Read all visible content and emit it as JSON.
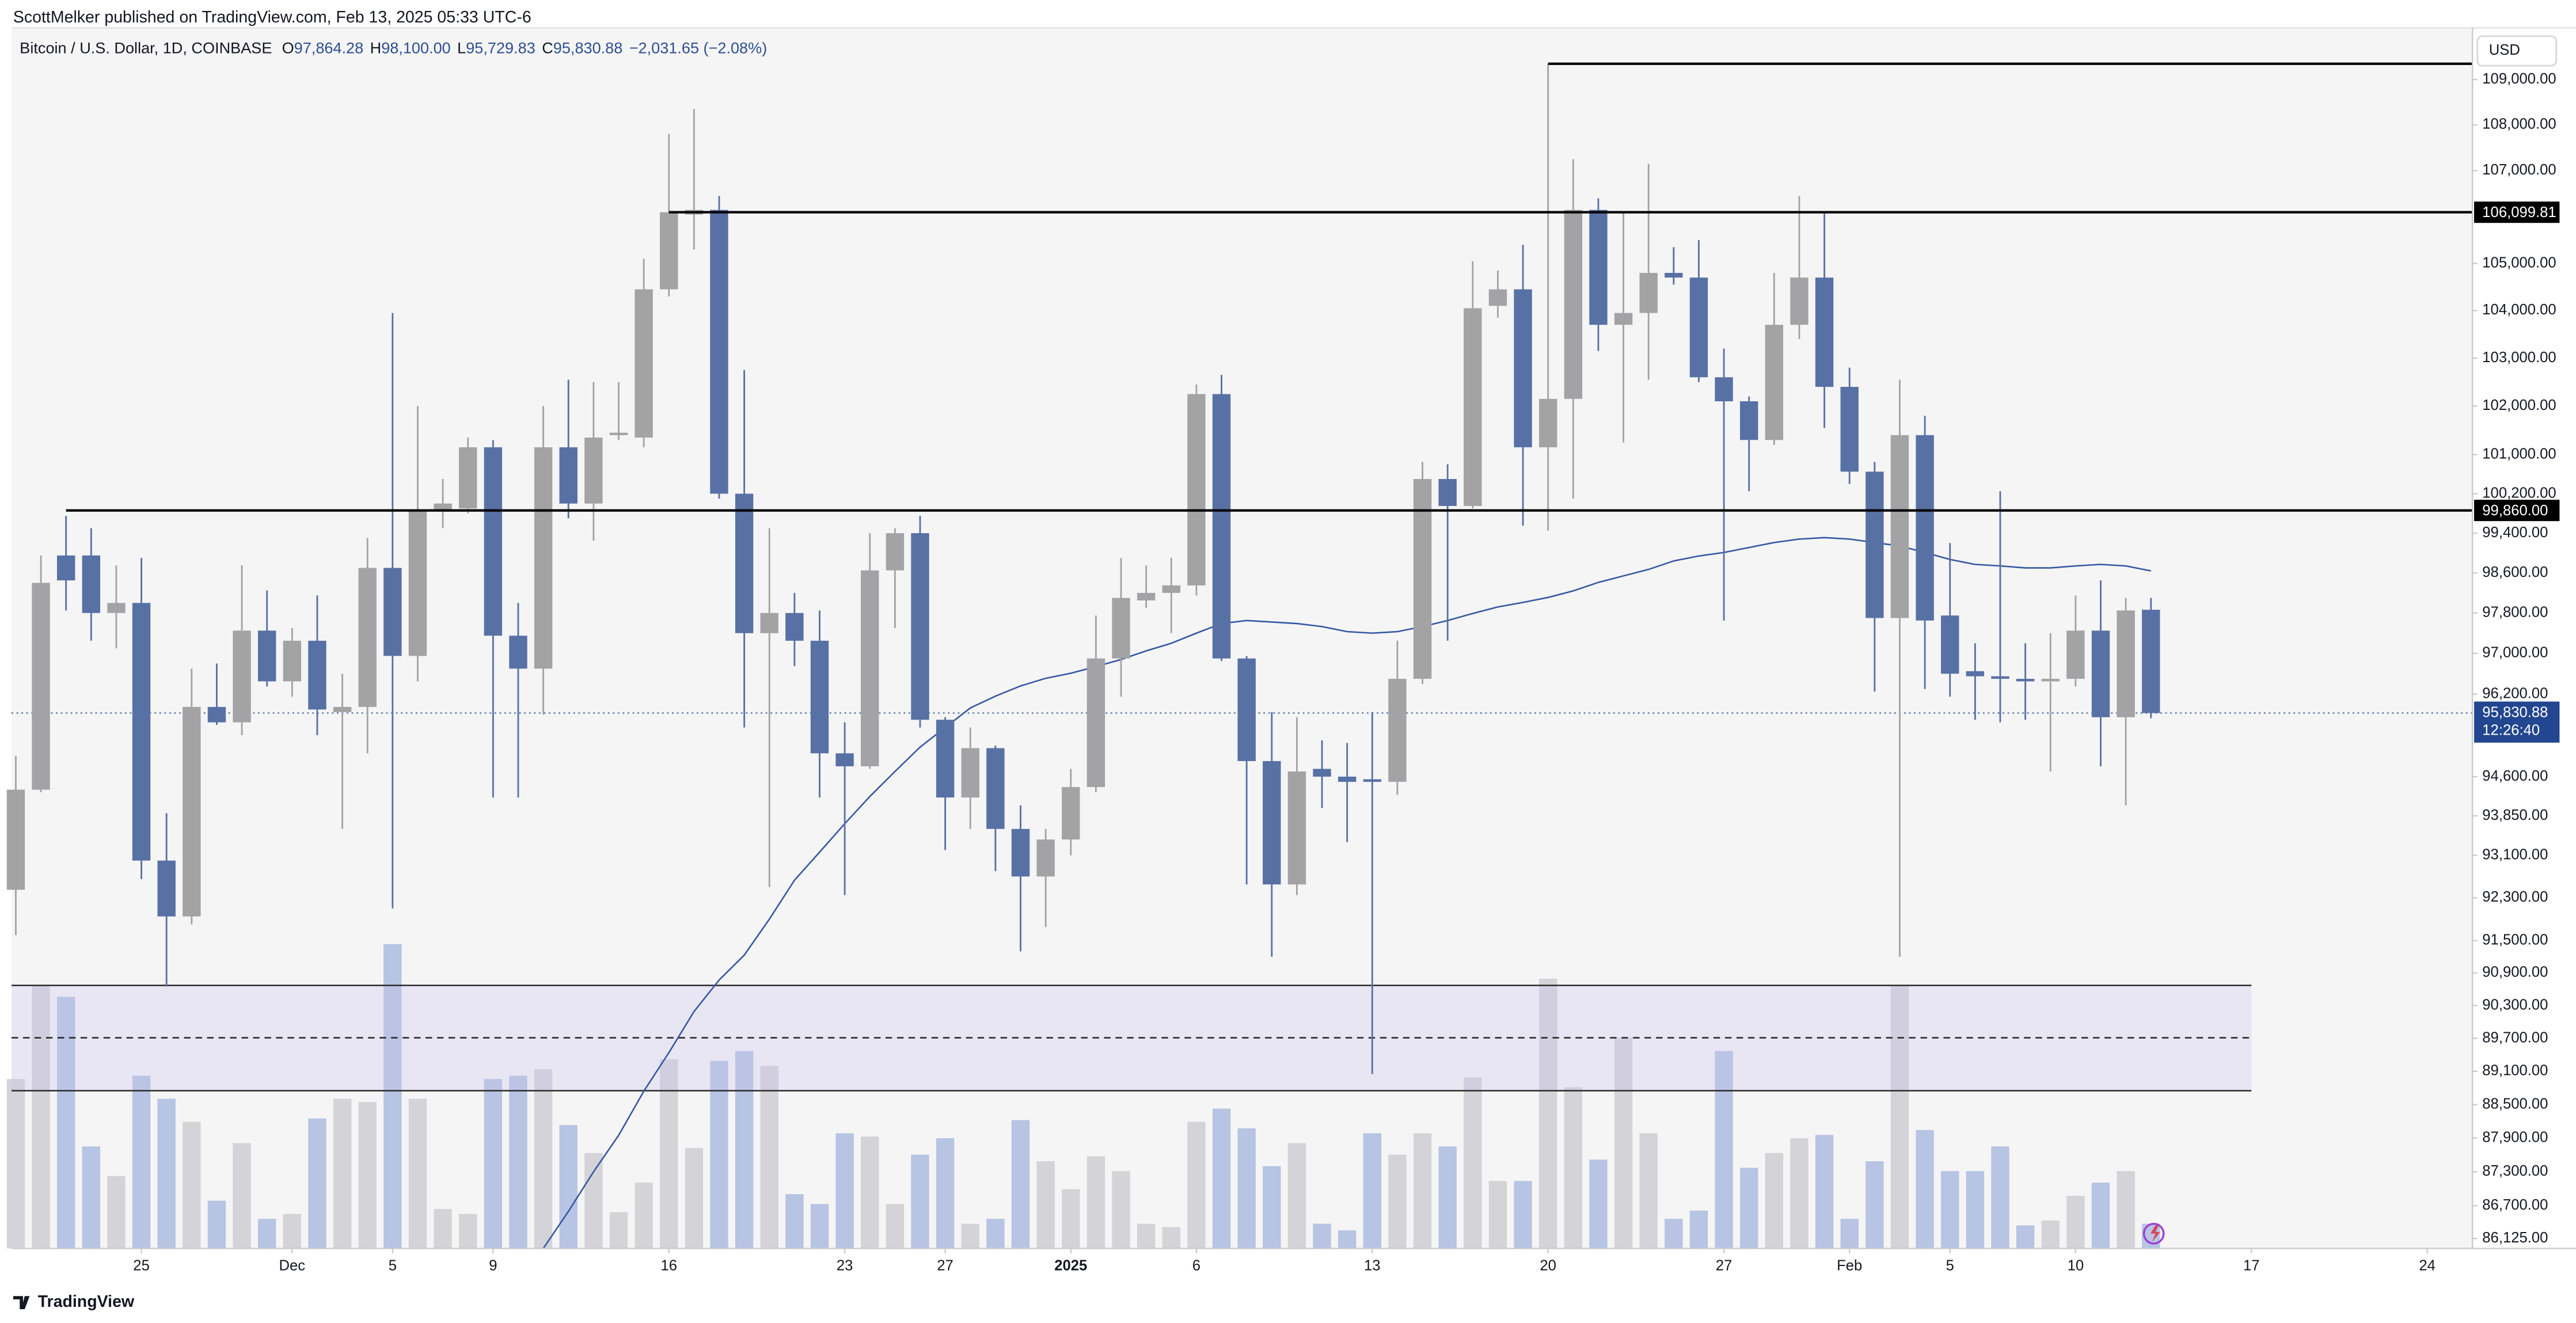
{
  "header": {
    "text": "ScottMelker published on TradingView.com, Feb 13, 2025 05:33 UTC-6"
  },
  "footer": {
    "brand": "TradingView"
  },
  "chart_data": {
    "type": "candlestick",
    "legend": {
      "symbol": "Bitcoin / U.S. Dollar, 1D, COINBASE",
      "items": [
        {
          "key": "O",
          "value": "97,864.28"
        },
        {
          "key": "H",
          "value": "98,100.00"
        },
        {
          "key": "L",
          "value": "95,729.83"
        },
        {
          "key": "C",
          "value": "95,830.88"
        }
      ],
      "change": "−2,031.65 (−2.08%)"
    },
    "currency": "USD",
    "log_scale": true,
    "grid": false,
    "up_color": "#a3a3a6",
    "down_color": "#5871a5",
    "volume_up_color": "#d4d4d8",
    "volume_down_color": "#b7c4e3",
    "ma_color": "#3556a3",
    "open": [
      92450,
      94350,
      98950,
      98950,
      97800,
      98000,
      93000,
      91950,
      95950,
      95650,
      97450,
      96450,
      97250,
      95850,
      95950,
      98700,
      96950,
      99850,
      99900,
      101150,
      97350,
      96700,
      101150,
      100000,
      101400,
      101350,
      104450,
      106050,
      106150,
      100200,
      97400,
      97800,
      97250,
      95050,
      94800,
      98650,
      99400,
      95700,
      94200,
      95150,
      93600,
      92700,
      93400,
      94400,
      96900,
      98050,
      98200,
      98350,
      102250,
      96900,
      94900,
      92550,
      94750,
      94600,
      94550,
      94500,
      96500,
      100500,
      99950,
      104100,
      104450,
      101150,
      102150,
      106150,
      103700,
      103950,
      104800,
      104700,
      102600,
      102100,
      101300,
      103700,
      104700,
      102400,
      100650,
      97700,
      101400,
      97750,
      96650,
      96550,
      96500,
      96450,
      96500,
      97450,
      95750,
      97864.28
    ],
    "high": [
      95000,
      98950,
      99750,
      99500,
      98750,
      98900,
      93900,
      96700,
      96800,
      98750,
      98250,
      97500,
      98150,
      96600,
      99300,
      103950,
      102000,
      100500,
      101350,
      101300,
      98000,
      102000,
      102550,
      102500,
      102500,
      105100,
      107800,
      108350,
      106450,
      102750,
      99500,
      98200,
      97850,
      95650,
      99400,
      99500,
      99750,
      95750,
      95550,
      95200,
      94050,
      93600,
      94750,
      97750,
      98900,
      98750,
      98900,
      102450,
      102650,
      96950,
      95850,
      95750,
      95300,
      95250,
      95850,
      97250,
      100850,
      100800,
      105050,
      104850,
      105400,
      109350,
      107250,
      106400,
      106100,
      107150,
      105350,
      105500,
      103200,
      102200,
      104800,
      106450,
      106100,
      102800,
      100850,
      102550,
      101800,
      99200,
      97200,
      100250,
      97200,
      97400,
      98150,
      98450,
      98100,
      98100
    ],
    "low": [
      91600,
      94300,
      97850,
      97250,
      97100,
      92650,
      90650,
      91800,
      95600,
      95400,
      96350,
      96150,
      95400,
      93600,
      95050,
      92100,
      96450,
      99500,
      99800,
      94200,
      94200,
      95800,
      99700,
      99250,
      101300,
      101150,
      104300,
      105300,
      100100,
      95550,
      92500,
      96750,
      94200,
      92350,
      94750,
      97500,
      95550,
      93200,
      93600,
      92800,
      91300,
      91750,
      93100,
      94300,
      96150,
      97900,
      97400,
      98150,
      96850,
      92550,
      91200,
      92350,
      94000,
      93350,
      89050,
      94250,
      96400,
      97250,
      99900,
      103850,
      99550,
      99450,
      100100,
      103150,
      101250,
      102550,
      104550,
      102500,
      97650,
      100250,
      101200,
      103400,
      101550,
      100400,
      96250,
      91200,
      96300,
      96150,
      95700,
      95650,
      95700,
      94700,
      96350,
      94800,
      94050,
      95729.83
    ],
    "close": [
      94350,
      98400,
      98450,
      97800,
      98000,
      93000,
      91950,
      95950,
      95650,
      97450,
      96450,
      97250,
      95900,
      95950,
      98700,
      96950,
      99850,
      100000,
      101150,
      97350,
      96700,
      101150,
      100000,
      101350,
      101450,
      104450,
      106100,
      106150,
      100200,
      97400,
      97800,
      97250,
      95050,
      94800,
      98650,
      99400,
      95700,
      94200,
      95150,
      93600,
      92700,
      93400,
      94400,
      96900,
      98100,
      98200,
      98350,
      102250,
      96900,
      94900,
      92550,
      94700,
      94600,
      94500,
      94500,
      96500,
      100500,
      99950,
      104050,
      104450,
      101150,
      102150,
      106150,
      103700,
      103950,
      104800,
      104700,
      102600,
      102100,
      101300,
      103700,
      104700,
      102400,
      100650,
      97700,
      101400,
      97650,
      96600,
      96550,
      96500,
      96450,
      96500,
      97450,
      95750,
      97850,
      95830.88
    ],
    "volume": [
      103,
      160,
      153,
      62,
      44,
      105,
      91,
      77,
      29,
      64,
      18,
      21,
      79,
      91,
      89,
      185,
      91,
      24,
      21,
      103,
      105,
      109,
      75,
      58,
      22,
      40,
      115,
      61,
      114,
      120,
      111,
      33,
      27,
      70,
      68,
      27,
      57,
      67,
      15,
      18,
      78,
      53,
      36,
      56,
      47,
      15,
      13,
      77,
      85,
      73,
      50,
      64,
      15,
      11,
      70,
      57,
      70,
      62,
      104,
      41,
      41,
      164,
      98,
      54,
      128,
      70,
      18,
      23,
      120,
      49,
      58,
      67,
      69,
      18,
      53,
      160,
      72,
      47,
      47,
      62,
      14,
      17,
      32,
      40,
      47,
      15
    ],
    "volume_lim": [
      0,
      742
    ],
    "ma": [
      null,
      null,
      null,
      null,
      null,
      null,
      null,
      null,
      null,
      null,
      null,
      null,
      null,
      null,
      null,
      null,
      null,
      null,
      null,
      null,
      null,
      85950,
      86600,
      87300,
      87950,
      88740,
      89440,
      90190,
      90770,
      91230,
      91900,
      92630,
      93160,
      93700,
      94220,
      94700,
      95170,
      95550,
      95930,
      96160,
      96360,
      96510,
      96610,
      96740,
      96880,
      97050,
      97200,
      97400,
      97590,
      97650,
      97620,
      97590,
      97530,
      97430,
      97400,
      97430,
      97530,
      97650,
      97790,
      97920,
      98010,
      98110,
      98240,
      98410,
      98540,
      98670,
      98840,
      98940,
      99010,
      99110,
      99210,
      99280,
      99310,
      99280,
      99210,
      99140,
      99010,
      98870,
      98770,
      98740,
      98700,
      98700,
      98740,
      98770,
      98740,
      98640
    ],
    "xlim": [
      -0.17,
      97.8
    ],
    "xticks": [
      {
        "value": 5,
        "label": "25"
      },
      {
        "value": 11,
        "label": "Dec"
      },
      {
        "value": 15,
        "label": "5"
      },
      {
        "value": 19,
        "label": "9"
      },
      {
        "value": 26,
        "label": "16"
      },
      {
        "value": 33,
        "label": "23"
      },
      {
        "value": 37,
        "label": "27"
      },
      {
        "value": 42,
        "label": "2025",
        "bold": true
      },
      {
        "value": 47,
        "label": "6"
      },
      {
        "value": 54,
        "label": "13"
      },
      {
        "value": 61,
        "label": "20"
      },
      {
        "value": 68,
        "label": "27"
      },
      {
        "value": 73,
        "label": "Feb"
      },
      {
        "value": 77,
        "label": "5"
      },
      {
        "value": 82,
        "label": "10"
      },
      {
        "value": 89,
        "label": "17"
      },
      {
        "value": 96,
        "label": "24"
      }
    ],
    "ylim": [
      85950,
      110150
    ],
    "yticks": [
      {
        "value": 109000,
        "label": "109,000.00"
      },
      {
        "value": 108000,
        "label": "108,000.00"
      },
      {
        "value": 107000,
        "label": "107,000.00"
      },
      {
        "value": 105000,
        "label": "105,000.00"
      },
      {
        "value": 104000,
        "label": "104,000.00"
      },
      {
        "value": 103000,
        "label": "103,000.00"
      },
      {
        "value": 102000,
        "label": "102,000.00"
      },
      {
        "value": 101000,
        "label": "101,000.00"
      },
      {
        "value": 100200,
        "label": "100,200.00"
      },
      {
        "value": 99400,
        "label": "99,400.00"
      },
      {
        "value": 98600,
        "label": "98,600.00"
      },
      {
        "value": 97800,
        "label": "97,800.00"
      },
      {
        "value": 97000,
        "label": "97,000.00"
      },
      {
        "value": 96200,
        "label": "96,200.00"
      },
      {
        "value": 94600,
        "label": "94,600.00"
      },
      {
        "value": 93850,
        "label": "93,850.00"
      },
      {
        "value": 93100,
        "label": "93,100.00"
      },
      {
        "value": 92300,
        "label": "92,300.00"
      },
      {
        "value": 91500,
        "label": "91,500.00"
      },
      {
        "value": 90900,
        "label": "90,900.00"
      },
      {
        "value": 90300,
        "label": "90,300.00"
      },
      {
        "value": 89700,
        "label": "89,700.00"
      },
      {
        "value": 89100,
        "label": "89,100.00"
      },
      {
        "value": 88500,
        "label": "88,500.00"
      },
      {
        "value": 87900,
        "label": "87,900.00"
      },
      {
        "value": 87300,
        "label": "87,300.00"
      },
      {
        "value": 86700,
        "label": "86,700.00"
      },
      {
        "value": 86125,
        "label": "86,125.00"
      }
    ],
    "hlines": [
      {
        "value": 109350,
        "start": 61
      },
      {
        "value": 106099.81,
        "label": "106,099.81",
        "start": 26
      },
      {
        "value": 99860,
        "label": "99,860.00",
        "start": 2
      }
    ],
    "zone": {
      "top": 90670,
      "mid": 89710,
      "bottom": 88750,
      "start": -0.17,
      "end": 89
    },
    "last_price": {
      "value": 95830.88,
      "label": "95,830.88",
      "countdown": "12:26:40"
    }
  }
}
